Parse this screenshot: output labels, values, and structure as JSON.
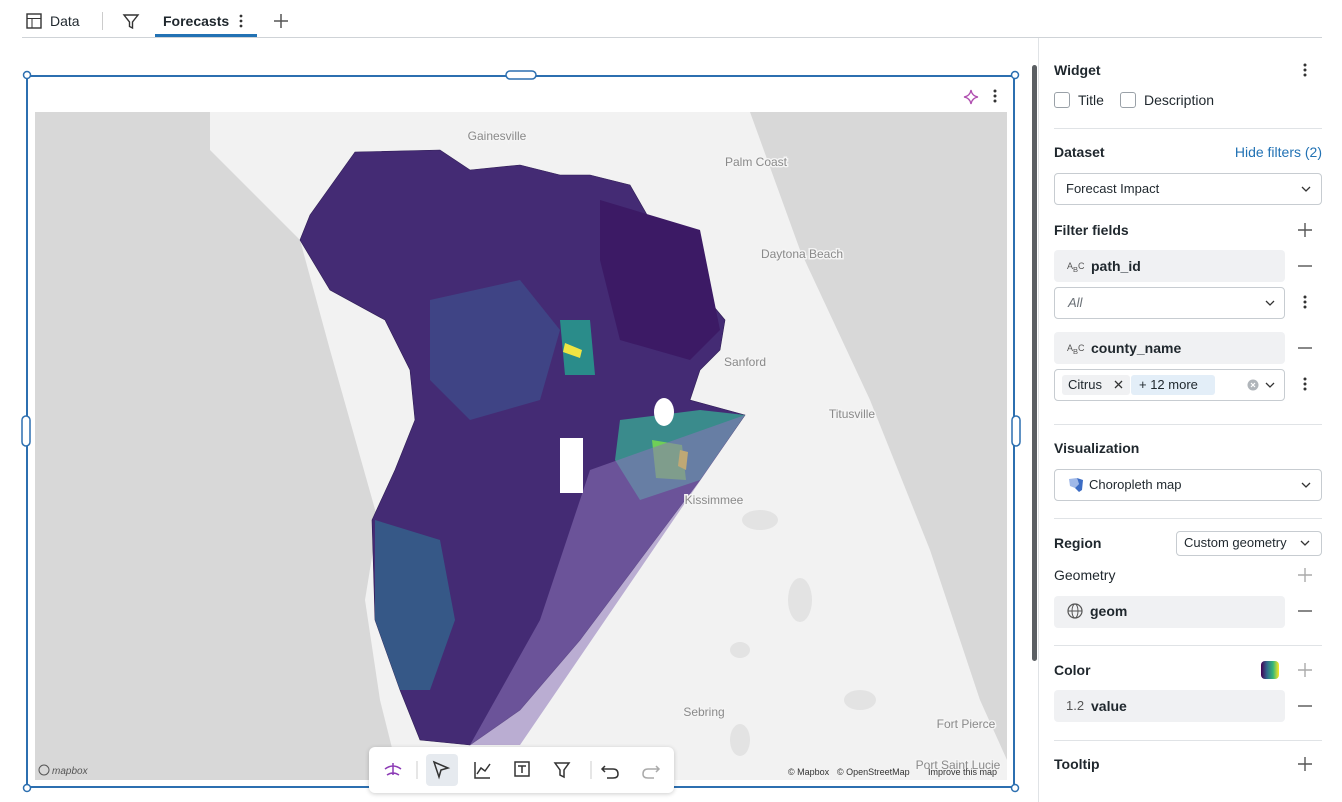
{
  "tabs": [
    {
      "label": "Data"
    },
    {
      "label": "Forecasts"
    }
  ],
  "map": {
    "labels": [
      "Gainesville",
      "Palm Coast",
      "Daytona Beach",
      "Sanford",
      "Titusville",
      "Kissimmee",
      "Sebring",
      "Fort Pierce",
      "Port Saint Lucie"
    ],
    "attribution": [
      "© Mapbox",
      "© OpenStreetMap",
      "Improve this map"
    ],
    "logo": "mapbox"
  },
  "panel": {
    "widget": {
      "heading": "Widget",
      "options": [
        "Title",
        "Description"
      ]
    },
    "dataset": {
      "heading": "Dataset",
      "link": "Hide filters (2)",
      "value": "Forecast Impact"
    },
    "filter_fields": {
      "heading": "Filter fields",
      "fields": [
        {
          "name": "path_id",
          "value": "All"
        },
        {
          "name": "county_name",
          "chip": "Citrus",
          "more": "+ 12 more"
        }
      ]
    },
    "visualization": {
      "heading": "Visualization",
      "value": "Choropleth map"
    },
    "region": {
      "heading": "Region",
      "value": "Custom geometry"
    },
    "geometry": {
      "heading": "Geometry",
      "field": "geom"
    },
    "color": {
      "heading": "Color",
      "type": "1.2",
      "field": "value"
    },
    "tooltip": {
      "heading": "Tooltip"
    }
  }
}
